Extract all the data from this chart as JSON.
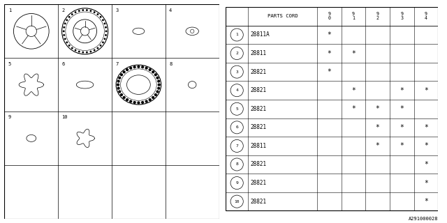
{
  "bg_color": "#ffffff",
  "diagram_label": "A291000028",
  "rows": [
    {
      "num": "1",
      "part": "28811A",
      "marks": [
        "*",
        "",
        "",
        "",
        ""
      ]
    },
    {
      "num": "2",
      "part": "28811",
      "marks": [
        "*",
        "*",
        "",
        "",
        ""
      ]
    },
    {
      "num": "3",
      "part": "28821",
      "marks": [
        "*",
        "",
        "",
        "",
        ""
      ]
    },
    {
      "num": "4",
      "part": "28821",
      "marks": [
        "",
        "*",
        "",
        "*",
        "*"
      ]
    },
    {
      "num": "5",
      "part": "28821",
      "marks": [
        "",
        "*",
        "*",
        "*",
        ""
      ]
    },
    {
      "num": "6",
      "part": "28821",
      "marks": [
        "",
        "",
        "*",
        "*",
        "*"
      ]
    },
    {
      "num": "7",
      "part": "28811",
      "marks": [
        "",
        "",
        "*",
        "*",
        "*"
      ]
    },
    {
      "num": "8",
      "part": "28821",
      "marks": [
        "",
        "",
        "",
        "",
        "*"
      ]
    },
    {
      "num": "9",
      "part": "28821",
      "marks": [
        "",
        "",
        "",
        "",
        "*"
      ]
    },
    {
      "num": "10",
      "part": "28821",
      "marks": [
        "",
        "",
        "",
        "",
        "*"
      ]
    }
  ],
  "year_cols": [
    "9\n0",
    "9\n1",
    "9\n2",
    "9\n3",
    "9\n4"
  ]
}
